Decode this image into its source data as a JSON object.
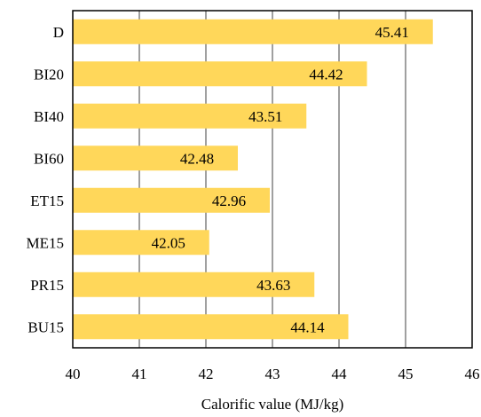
{
  "chart_data": {
    "type": "bar",
    "orientation": "horizontal",
    "categories": [
      "D",
      "BI20",
      "BI40",
      "BI60",
      "ET15",
      "ME15",
      "PR15",
      "BU15"
    ],
    "values": [
      45.41,
      44.42,
      43.51,
      42.48,
      42.96,
      42.05,
      43.63,
      44.14
    ],
    "data_labels": [
      "45.41",
      "44.42",
      "43.51",
      "42.48",
      "42.96",
      "42.05",
      "43.63",
      "44.14"
    ],
    "xlabel": "Calorific value (MJ/kg)",
    "ylabel": "",
    "xlim": [
      40,
      46
    ],
    "xticks": [
      "40",
      "41",
      "42",
      "43",
      "44",
      "45",
      "46"
    ],
    "grid": "vertical",
    "legend": "none",
    "bar_color": "#FFD75A",
    "grid_color": "#808080",
    "frame_color": "#000000"
  }
}
